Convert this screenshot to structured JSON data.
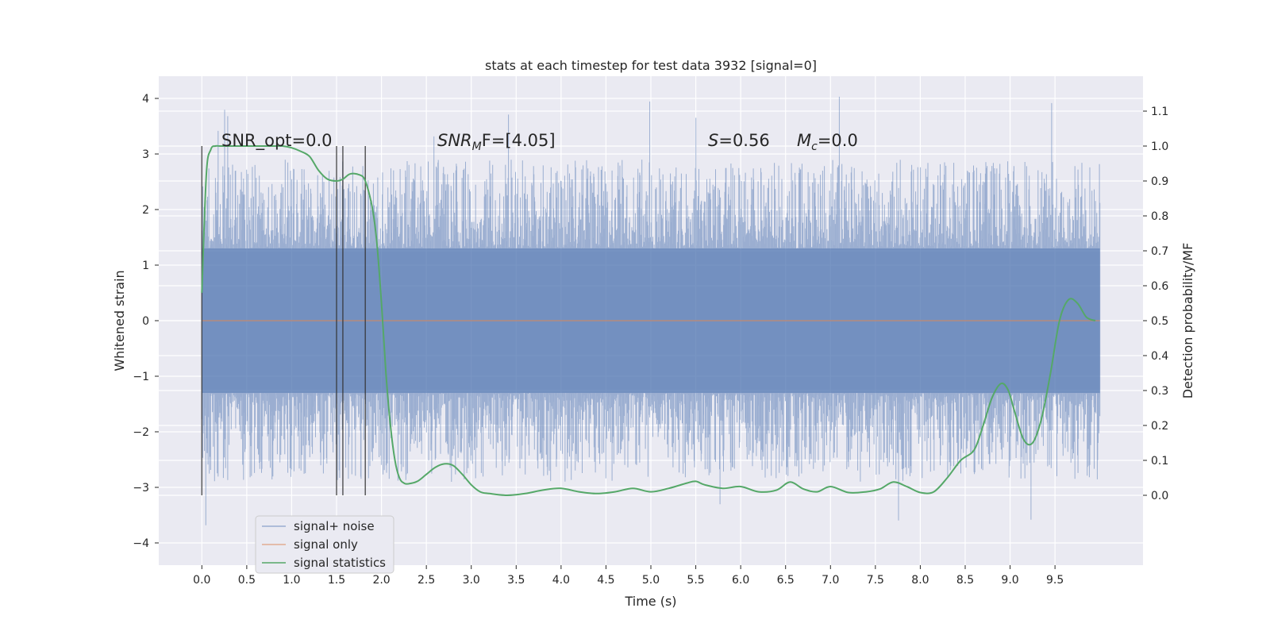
{
  "chart_data": {
    "type": "line",
    "title": "stats at each timestep for test data 3932 [signal=0]",
    "xlabel": "Time (s)",
    "ylabel_left": "Whitened strain",
    "ylabel_right": "Detection probability/MF",
    "x_ticks": [
      "0.0",
      "0.5",
      "1.0",
      "1.5",
      "2.0",
      "2.5",
      "3.0",
      "3.5",
      "4.0",
      "4.5",
      "5.0",
      "5.5",
      "6.0",
      "6.5",
      "7.0",
      "7.5",
      "8.0",
      "8.5",
      "9.0",
      "9.5"
    ],
    "y_left_ticks": [
      "−4",
      "−3",
      "−2",
      "−1",
      "0",
      "1",
      "2",
      "3",
      "4"
    ],
    "y_right_ticks": [
      "0.0",
      "0.1",
      "0.2",
      "0.3",
      "0.4",
      "0.5",
      "0.6",
      "0.7",
      "0.8",
      "0.9",
      "1.0",
      "1.1"
    ],
    "xlim": [
      -0.48,
      10.48
    ],
    "ylim_left": [
      -4.4,
      4.4
    ],
    "ylim_right": [
      -0.2,
      1.2
    ],
    "grid": true,
    "legend_position": "lower-left",
    "annotations": {
      "snr_opt": "SNR_opt=0.0",
      "snr_mf_main": "SNR",
      "snr_mf_sub": "M",
      "snr_mf_tail": "F=[4.05]",
      "s_main": "S",
      "s_tail": "=0.56",
      "mc_main": "M",
      "mc_sub": "c",
      "mc_tail": "=0.0"
    },
    "vertical_markers": [
      0.0,
      1.5,
      1.57,
      1.82
    ],
    "series": [
      {
        "name": "signal+ noise",
        "color": "#4c72b0",
        "opacity": 0.5,
        "x_range": [
          0.0,
          10.0
        ],
        "core_band": [
          -1.3,
          1.3
        ],
        "spike_range": [
          -3.9,
          4.05
        ],
        "n_samples": 2048,
        "seed": 3932
      },
      {
        "name": "signal only",
        "color": "#dd8452",
        "opacity": 0.6,
        "x": [
          0.0,
          10.0
        ],
        "y": [
          0.0,
          0.0
        ]
      },
      {
        "name": "signal statistics",
        "color": "#55a868",
        "x": [
          0.0,
          0.05,
          0.1,
          0.15,
          0.2,
          0.3,
          0.4,
          0.5,
          0.6,
          0.7,
          0.8,
          0.9,
          1.0,
          1.1,
          1.2,
          1.3,
          1.4,
          1.5,
          1.57,
          1.65,
          1.75,
          1.82,
          1.9,
          1.95,
          2.0,
          2.05,
          2.1,
          2.15,
          2.2,
          2.25,
          2.3,
          2.4,
          2.5,
          2.6,
          2.7,
          2.8,
          2.9,
          3.0,
          3.1,
          3.2,
          3.4,
          3.6,
          3.8,
          4.0,
          4.2,
          4.4,
          4.6,
          4.8,
          5.0,
          5.2,
          5.4,
          5.5,
          5.6,
          5.8,
          6.0,
          6.2,
          6.4,
          6.55,
          6.7,
          6.85,
          7.0,
          7.2,
          7.4,
          7.55,
          7.7,
          7.85,
          8.0,
          8.15,
          8.3,
          8.45,
          8.6,
          8.7,
          8.8,
          8.9,
          8.98,
          9.05,
          9.15,
          9.25,
          9.35,
          9.45,
          9.55,
          9.65,
          9.75,
          9.85,
          9.95
        ],
        "y": [
          0.58,
          0.92,
          0.99,
          1.0,
          1.0,
          1.0,
          1.0,
          1.0,
          1.0,
          1.0,
          1.0,
          1.0,
          0.995,
          0.985,
          0.97,
          0.93,
          0.905,
          0.9,
          0.905,
          0.92,
          0.918,
          0.9,
          0.82,
          0.72,
          0.55,
          0.35,
          0.2,
          0.1,
          0.05,
          0.035,
          0.033,
          0.04,
          0.06,
          0.08,
          0.09,
          0.085,
          0.06,
          0.03,
          0.01,
          0.005,
          0.0,
          0.005,
          0.015,
          0.02,
          0.01,
          0.005,
          0.01,
          0.02,
          0.01,
          0.02,
          0.035,
          0.04,
          0.03,
          0.02,
          0.025,
          0.01,
          0.015,
          0.038,
          0.018,
          0.01,
          0.025,
          0.008,
          0.01,
          0.018,
          0.038,
          0.025,
          0.008,
          0.01,
          0.05,
          0.1,
          0.13,
          0.2,
          0.28,
          0.32,
          0.3,
          0.24,
          0.16,
          0.15,
          0.22,
          0.35,
          0.5,
          0.56,
          0.55,
          0.51,
          0.5
        ]
      }
    ]
  }
}
